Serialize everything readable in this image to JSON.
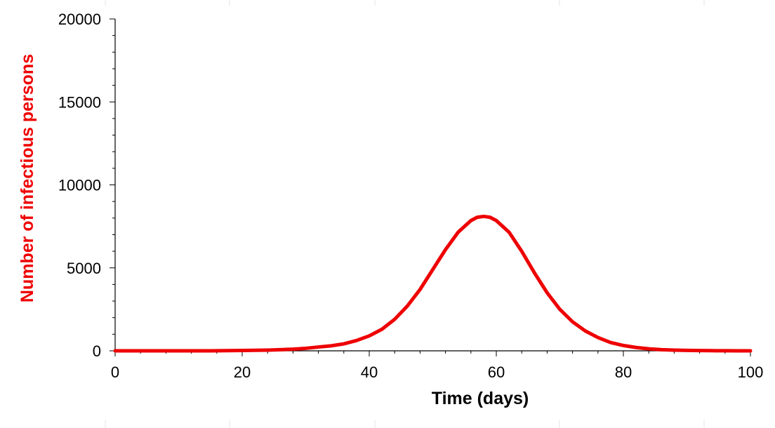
{
  "chart_data": {
    "type": "line",
    "title": "",
    "xlabel": "Time (days)",
    "ylabel": "Number of infectious persons",
    "xlim": [
      0,
      100
    ],
    "ylim": [
      0,
      20000
    ],
    "x_ticks": [
      0,
      20,
      40,
      60,
      80,
      100
    ],
    "y_ticks": [
      0,
      5000,
      10000,
      15000,
      20000
    ],
    "grid": false,
    "legend": "none",
    "colors": {
      "series": "#ee0000",
      "ylabel": "#ee0000",
      "axis": "#000000"
    },
    "series": [
      {
        "x": [
          0,
          5,
          10,
          15,
          20,
          22,
          24,
          26,
          28,
          30,
          32,
          34,
          36,
          38,
          40,
          42,
          44,
          46,
          48,
          50,
          52,
          54,
          56,
          57,
          58,
          59,
          60,
          62,
          64,
          66,
          68,
          70,
          72,
          74,
          76,
          78,
          80,
          82,
          84,
          86,
          88,
          90,
          92,
          94,
          96,
          98,
          100
        ],
        "y": [
          0,
          0,
          0,
          0,
          20,
          30,
          45,
          70,
          100,
          150,
          230,
          300,
          420,
          620,
          900,
          1300,
          1900,
          2700,
          3700,
          4900,
          6100,
          7150,
          7850,
          8050,
          8100,
          8050,
          7850,
          7150,
          6000,
          4700,
          3500,
          2500,
          1750,
          1200,
          800,
          500,
          320,
          200,
          120,
          70,
          40,
          25,
          15,
          8,
          4,
          2,
          0
        ]
      }
    ]
  }
}
